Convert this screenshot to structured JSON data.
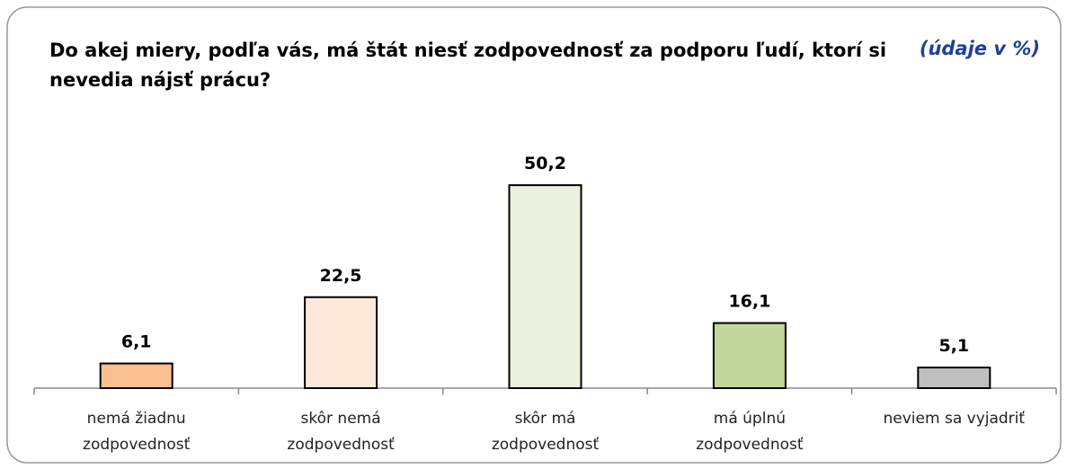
{
  "chart_data": {
    "type": "bar",
    "title": "Do akej miery, podľa vás, má štát niesť zodpovednosť za podporu ľudí, ktorí si nevedia nájsť prácu?",
    "note": "(údaje v %)",
    "categories": [
      "nemá žiadnu zodpovednosť",
      "skôr nemá zodpovednosť",
      "skôr má zodpovednosť",
      "má úplnú zodpovednosť",
      "neviem sa vyjadriť"
    ],
    "values": [
      6.1,
      22.5,
      50.2,
      16.1,
      5.1
    ],
    "value_labels": [
      "6,1",
      "22,5",
      "50,2",
      "16,1",
      "5,1"
    ],
    "colors": [
      "#fac090",
      "#fde9d9",
      "#ebf1de",
      "#c3d69b",
      "#bfbfbf"
    ]
  }
}
